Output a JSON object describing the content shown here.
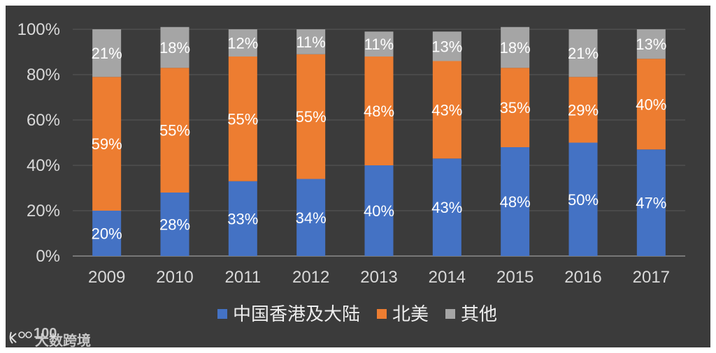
{
  "chart_data": {
    "type": "bar",
    "stacked": true,
    "categories": [
      "2009",
      "2010",
      "2011",
      "2012",
      "2013",
      "2014",
      "2015",
      "2016",
      "2017"
    ],
    "series": [
      {
        "name": "中国香港及大陆",
        "color": "#4472c4",
        "values": [
          20,
          28,
          33,
          34,
          40,
          43,
          48,
          50,
          47
        ],
        "labels": [
          "20%",
          "28%",
          "33%",
          "34%",
          "40%",
          "43%",
          "48%",
          "50%",
          "47%"
        ]
      },
      {
        "name": "北美",
        "color": "#ed7d31",
        "values": [
          59,
          55,
          55,
          55,
          48,
          43,
          35,
          29,
          40
        ],
        "labels": [
          "59%",
          "55%",
          "55%",
          "55%",
          "48%",
          "43%",
          "35%",
          "29%",
          "40%"
        ]
      },
      {
        "name": "其他",
        "color": "#a5a5a5",
        "values": [
          21,
          18,
          12,
          11,
          11,
          13,
          18,
          21,
          13
        ],
        "labels": [
          "21%",
          "18%",
          "12%",
          "11%",
          "11%",
          "13%",
          "18%",
          "21%",
          "13%"
        ]
      }
    ],
    "yticks": [
      "0%",
      "20%",
      "40%",
      "60%",
      "80%",
      "100%"
    ],
    "ylim": [
      0,
      100
    ],
    "grid": true,
    "legend_position": "bottom",
    "title": "",
    "xlabel": "",
    "ylabel": ""
  },
  "watermark": {
    "text": "大数跨境",
    "logo_text": "100"
  },
  "colors": {
    "background": "#3b3b3b",
    "gridline": "#595959",
    "axis": "#8c8c8c"
  }
}
